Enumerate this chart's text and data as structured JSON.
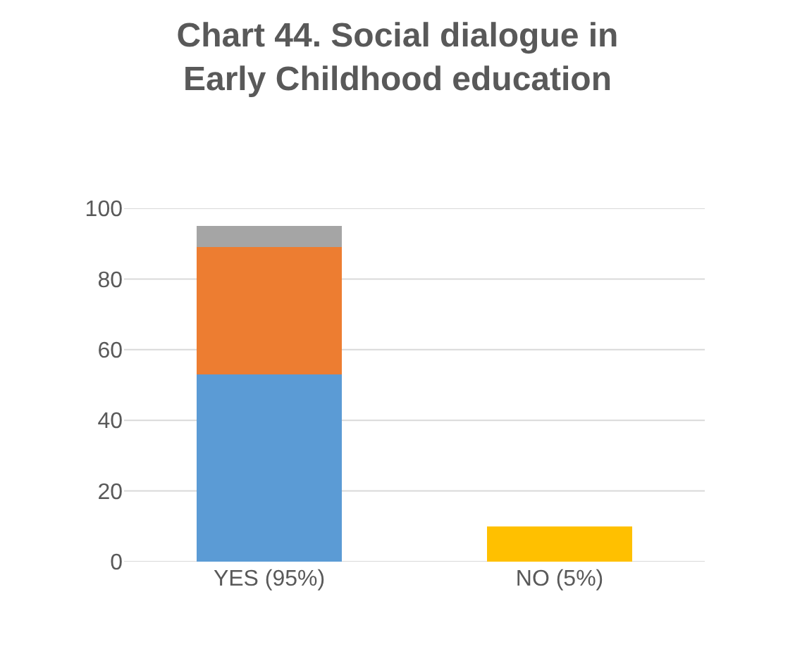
{
  "chart_data": {
    "type": "bar",
    "stacked": true,
    "title": "Chart 44. Social dialogue in\nEarly Childhood education",
    "categories": [
      "YES (95%)",
      "NO (5%)"
    ],
    "series": [
      {
        "color": "#5b9bd5",
        "values": [
          53,
          null
        ]
      },
      {
        "color": "#ed7d31",
        "values": [
          36,
          null
        ]
      },
      {
        "color": "#a5a5a5",
        "values": [
          6,
          null
        ]
      },
      {
        "color": "#ffc000",
        "values": [
          null,
          10
        ]
      }
    ],
    "ylim": [
      0,
      100
    ],
    "yticks": [
      0,
      20,
      40,
      60,
      80,
      100
    ],
    "grid": "y"
  }
}
